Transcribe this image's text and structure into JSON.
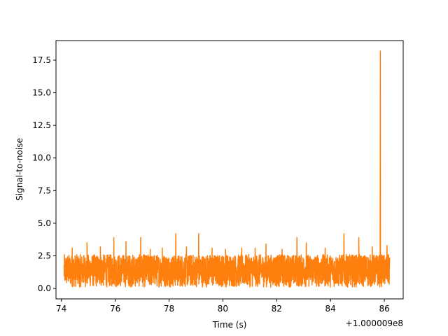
{
  "chart_data": {
    "type": "line",
    "title": "",
    "xlabel": "Time (s)",
    "ylabel": "Signal-to-noise",
    "x_offset_label": "+1.000009e8",
    "xlim": [
      73.8,
      86.7
    ],
    "ylim": [
      -0.8,
      19.0
    ],
    "x_ticks": [
      74,
      76,
      78,
      80,
      82,
      84,
      86
    ],
    "x_tick_labels": [
      "74",
      "76",
      "78",
      "80",
      "82",
      "84",
      "86"
    ],
    "y_ticks": [
      0.0,
      2.5,
      5.0,
      7.5,
      10.0,
      12.5,
      15.0,
      17.5
    ],
    "y_tick_labels": [
      "0.0",
      "2.5",
      "5.0",
      "7.5",
      "10.0",
      "12.5",
      "15.0",
      "17.5"
    ],
    "grid": false,
    "series": [
      {
        "color": "#ff7f0e",
        "x_start": 74.1,
        "x_end": 86.2,
        "noise_min": 0.1,
        "noise_max": 2.6,
        "peaks": [
          {
            "x": 74.4,
            "y": 3.1
          },
          {
            "x": 74.95,
            "y": 3.5
          },
          {
            "x": 75.45,
            "y": 3.2
          },
          {
            "x": 75.95,
            "y": 3.9
          },
          {
            "x": 76.4,
            "y": 3.6
          },
          {
            "x": 76.95,
            "y": 3.9
          },
          {
            "x": 77.3,
            "y": 3.0
          },
          {
            "x": 77.75,
            "y": 3.1
          },
          {
            "x": 78.25,
            "y": 4.2
          },
          {
            "x": 78.65,
            "y": 3.2
          },
          {
            "x": 79.1,
            "y": 4.2
          },
          {
            "x": 79.6,
            "y": 3.1
          },
          {
            "x": 80.1,
            "y": 3.0
          },
          {
            "x": 80.7,
            "y": 3.1
          },
          {
            "x": 81.2,
            "y": 3.1
          },
          {
            "x": 81.6,
            "y": 3.4
          },
          {
            "x": 82.2,
            "y": 3.0
          },
          {
            "x": 82.75,
            "y": 3.9
          },
          {
            "x": 83.1,
            "y": 3.5
          },
          {
            "x": 83.8,
            "y": 3.1
          },
          {
            "x": 84.5,
            "y": 4.2
          },
          {
            "x": 85.05,
            "y": 3.9
          },
          {
            "x": 85.55,
            "y": 3.2
          },
          {
            "x": 85.85,
            "y": 18.2
          },
          {
            "x": 86.1,
            "y": 3.3
          }
        ]
      }
    ]
  }
}
